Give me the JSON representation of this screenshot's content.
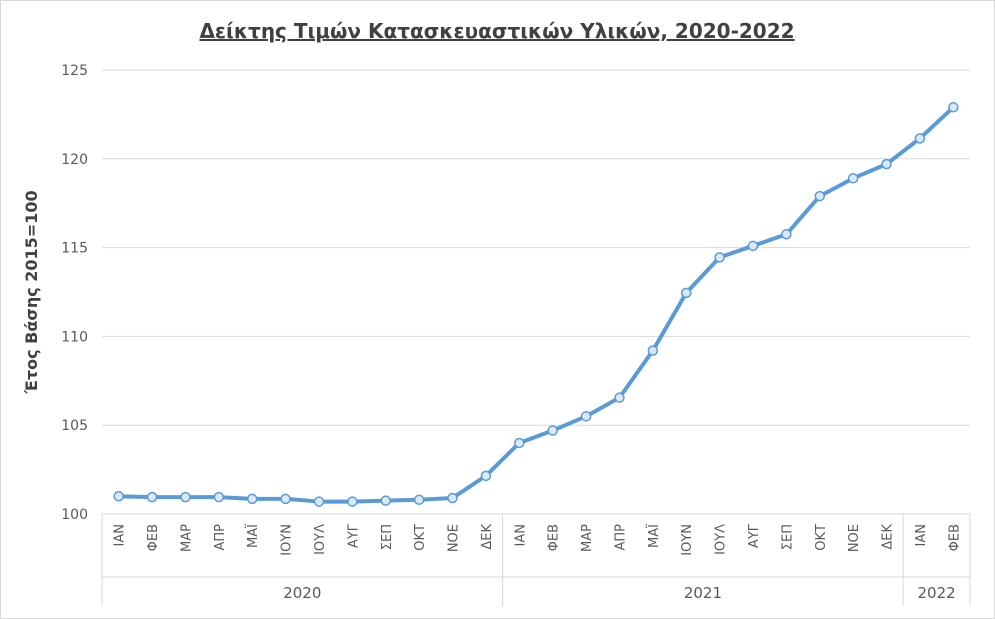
{
  "chart_data": {
    "type": "line",
    "title": "Δείκτης Τιμών Κατασκευαστικών Υλικών, 2020-2022",
    "ylabel": "Έτος Βάσης 2015=100",
    "xlabel": "",
    "ylim": [
      100,
      125
    ],
    "yticks": [
      100,
      105,
      110,
      115,
      120,
      125
    ],
    "grid": true,
    "legend": "none",
    "line_color": "#5b9bd5",
    "categories": [
      "ΙΑΝ",
      "ΦΕΒ",
      "ΜΑΡ",
      "ΑΠΡ",
      "ΜΑΪ",
      "ΙΟΥΝ",
      "ΙΟΥΛ",
      "ΑΥΓ",
      "ΣΕΠ",
      "ΟΚΤ",
      "ΝΟΕ",
      "ΔΕΚ",
      "ΙΑΝ",
      "ΦΕΒ",
      "ΜΑΡ",
      "ΑΠΡ",
      "ΜΑΪ",
      "ΙΟΥΝ",
      "ΙΟΥΛ",
      "ΑΥΓ",
      "ΣΕΠ",
      "ΟΚΤ",
      "ΝΟΕ",
      "ΔΕΚ",
      "ΙΑΝ",
      "ΦΕΒ"
    ],
    "year_groups": [
      {
        "label": "2020",
        "count": 12
      },
      {
        "label": "2021",
        "count": 12
      },
      {
        "label": "2022",
        "count": 2
      }
    ],
    "series": [
      {
        "values": [
          101.0,
          100.95,
          100.95,
          100.95,
          100.85,
          100.85,
          100.7,
          100.7,
          100.75,
          100.8,
          100.9,
          102.15,
          104.0,
          104.7,
          105.5,
          106.55,
          109.2,
          112.45,
          114.45,
          115.1,
          115.75,
          117.9,
          118.9,
          119.7,
          121.15,
          122.9
        ]
      }
    ]
  }
}
